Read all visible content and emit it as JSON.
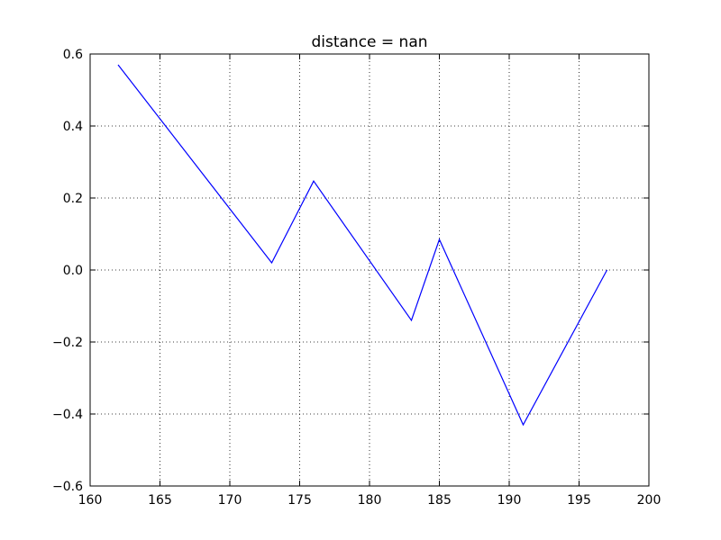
{
  "chart_data": {
    "type": "line",
    "title": "distance = nan",
    "xlabel": "",
    "ylabel": "",
    "xlim": [
      160,
      200
    ],
    "ylim": [
      -0.6,
      0.6
    ],
    "grid": true,
    "x_ticks": [
      160,
      165,
      170,
      175,
      180,
      185,
      190,
      195,
      200
    ],
    "y_ticks": [
      -0.6,
      -0.4,
      -0.2,
      0.0,
      0.2,
      0.4,
      0.6
    ],
    "x_tick_labels": [
      "160",
      "165",
      "170",
      "175",
      "180",
      "185",
      "190",
      "195",
      "200"
    ],
    "y_tick_labels": [
      "−0.6",
      "−0.4",
      "−0.2",
      "0.0",
      "0.2",
      "0.4",
      "0.6"
    ],
    "series": [
      {
        "color": "#0000ff",
        "x": [
          162,
          173,
          176,
          183,
          185,
          191,
          197
        ],
        "y": [
          0.57,
          0.02,
          0.247,
          -0.14,
          0.085,
          -0.43,
          0.0
        ]
      }
    ]
  }
}
